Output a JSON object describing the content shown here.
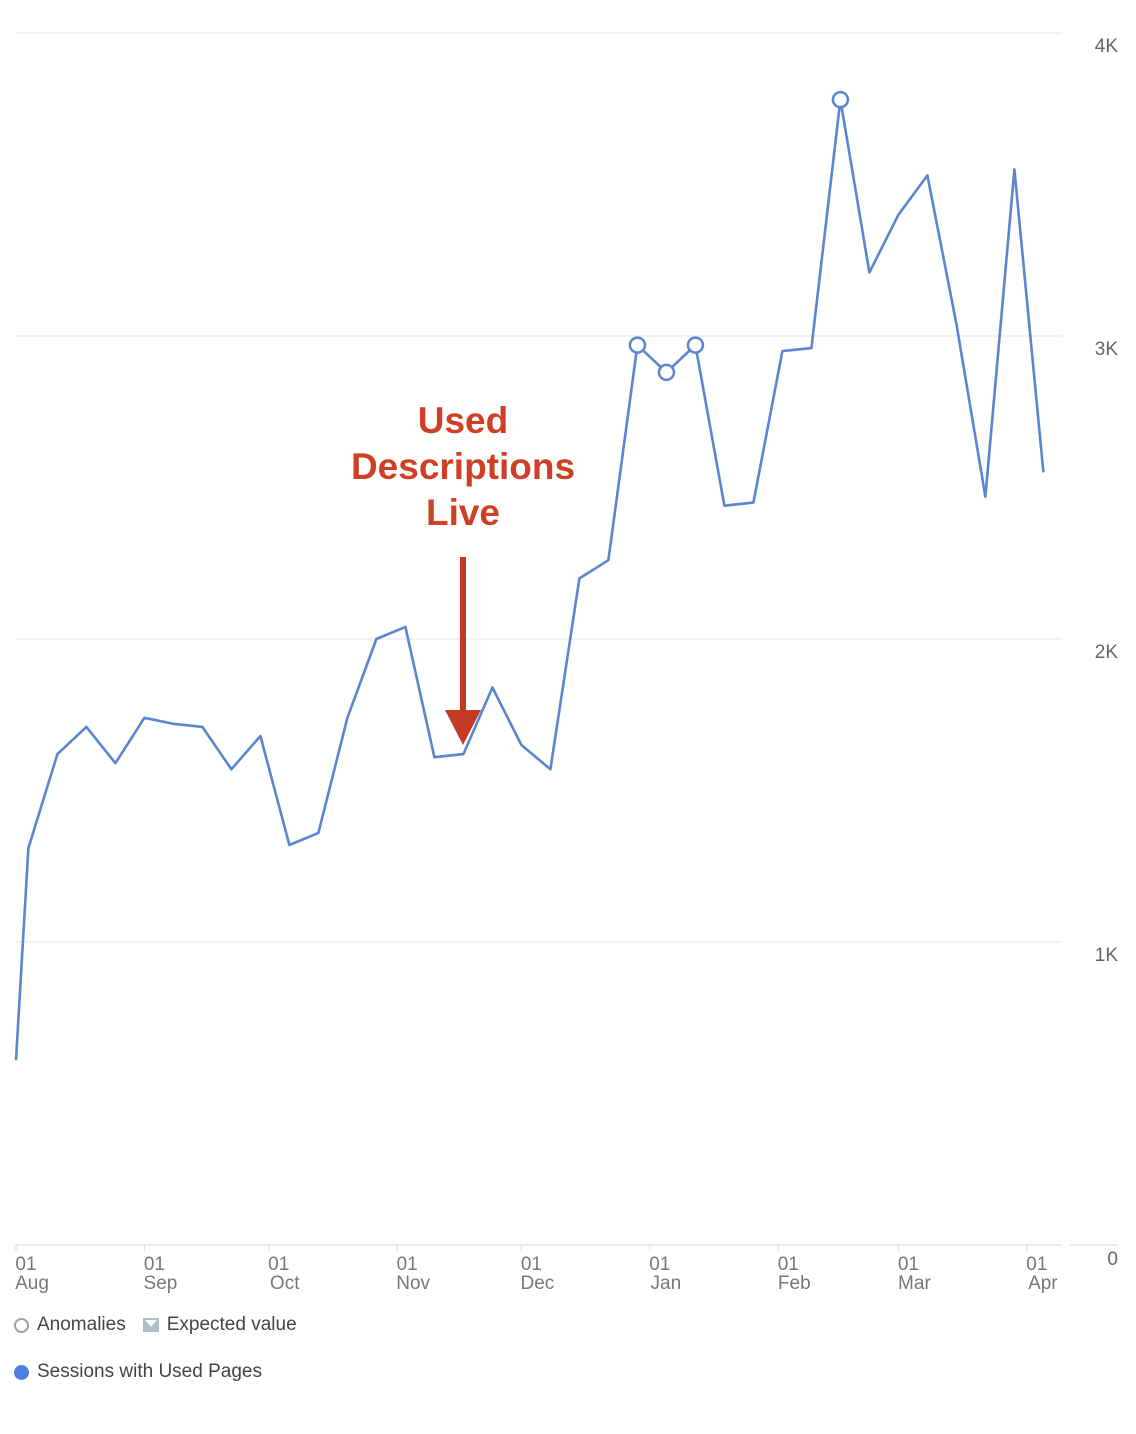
{
  "chart_data": {
    "type": "line",
    "y_ticks": [
      "0",
      "1K",
      "2K",
      "3K",
      "4K"
    ],
    "ylim": [
      0,
      4000
    ],
    "x_ticks": [
      {
        "day": "01",
        "month": "Aug",
        "date": "2019-08-01"
      },
      {
        "day": "01",
        "month": "Sep",
        "date": "2019-09-01"
      },
      {
        "day": "01",
        "month": "Oct",
        "date": "2019-10-01"
      },
      {
        "day": "01",
        "month": "Nov",
        "date": "2019-11-01"
      },
      {
        "day": "01",
        "month": "Dec",
        "date": "2019-12-01"
      },
      {
        "day": "01",
        "month": "Jan",
        "date": "2020-01-01"
      },
      {
        "day": "01",
        "month": "Feb",
        "date": "2020-02-01"
      },
      {
        "day": "01",
        "month": "Mar",
        "date": "2020-03-01"
      },
      {
        "day": "01",
        "month": "Apr",
        "date": "2020-04-01"
      }
    ],
    "xlim": [
      "2019-08-01",
      "2020-04-09"
    ],
    "grid": true,
    "series": [
      {
        "name": "Sessions with Used Pages",
        "color": "#5b85d1",
        "points": [
          {
            "x": "2019-08-01",
            "y": 610
          },
          {
            "x": "2019-08-04",
            "y": 1310
          },
          {
            "x": "2019-08-11",
            "y": 1620
          },
          {
            "x": "2019-08-18",
            "y": 1710
          },
          {
            "x": "2019-08-25",
            "y": 1590
          },
          {
            "x": "2019-09-01",
            "y": 1740
          },
          {
            "x": "2019-09-08",
            "y": 1720
          },
          {
            "x": "2019-09-15",
            "y": 1710
          },
          {
            "x": "2019-09-22",
            "y": 1570
          },
          {
            "x": "2019-09-29",
            "y": 1680
          },
          {
            "x": "2019-10-06",
            "y": 1320
          },
          {
            "x": "2019-10-13",
            "y": 1360
          },
          {
            "x": "2019-10-20",
            "y": 1740
          },
          {
            "x": "2019-10-27",
            "y": 2000
          },
          {
            "x": "2019-11-03",
            "y": 2040
          },
          {
            "x": "2019-11-10",
            "y": 1610
          },
          {
            "x": "2019-11-17",
            "y": 1620
          },
          {
            "x": "2019-11-24",
            "y": 1840
          },
          {
            "x": "2019-12-01",
            "y": 1650
          },
          {
            "x": "2019-12-08",
            "y": 1570
          },
          {
            "x": "2019-12-15",
            "y": 2200
          },
          {
            "x": "2019-12-22",
            "y": 2260
          },
          {
            "x": "2019-12-29",
            "y": 2970,
            "anomaly": true
          },
          {
            "x": "2020-01-05",
            "y": 2880,
            "anomaly": true
          },
          {
            "x": "2020-01-12",
            "y": 2970,
            "anomaly": true
          },
          {
            "x": "2020-01-19",
            "y": 2440
          },
          {
            "x": "2020-01-26",
            "y": 2450
          },
          {
            "x": "2020-02-02",
            "y": 2950
          },
          {
            "x": "2020-02-09",
            "y": 2960
          },
          {
            "x": "2020-02-16",
            "y": 3780,
            "anomaly": true
          },
          {
            "x": "2020-02-23",
            "y": 3210
          },
          {
            "x": "2020-03-01",
            "y": 3400
          },
          {
            "x": "2020-03-08",
            "y": 3530
          },
          {
            "x": "2020-03-15",
            "y": 3040
          },
          {
            "x": "2020-03-22",
            "y": 2470
          },
          {
            "x": "2020-03-29",
            "y": 3550
          },
          {
            "x": "2020-04-05",
            "y": 2550
          }
        ]
      }
    ],
    "annotation": {
      "lines": [
        "Used",
        "Descriptions",
        "Live"
      ],
      "points_to_date": "2019-11-15"
    },
    "legend": {
      "placement": "bottom-left",
      "items": [
        {
          "label": "Anomalies",
          "icon": "hollow-circle-icon"
        },
        {
          "label": "Expected value",
          "icon": "expected-value-icon"
        },
        {
          "label": "Sessions with Used Pages",
          "icon": "filled-circle-icon",
          "color": "#4e7ee0"
        }
      ]
    }
  }
}
